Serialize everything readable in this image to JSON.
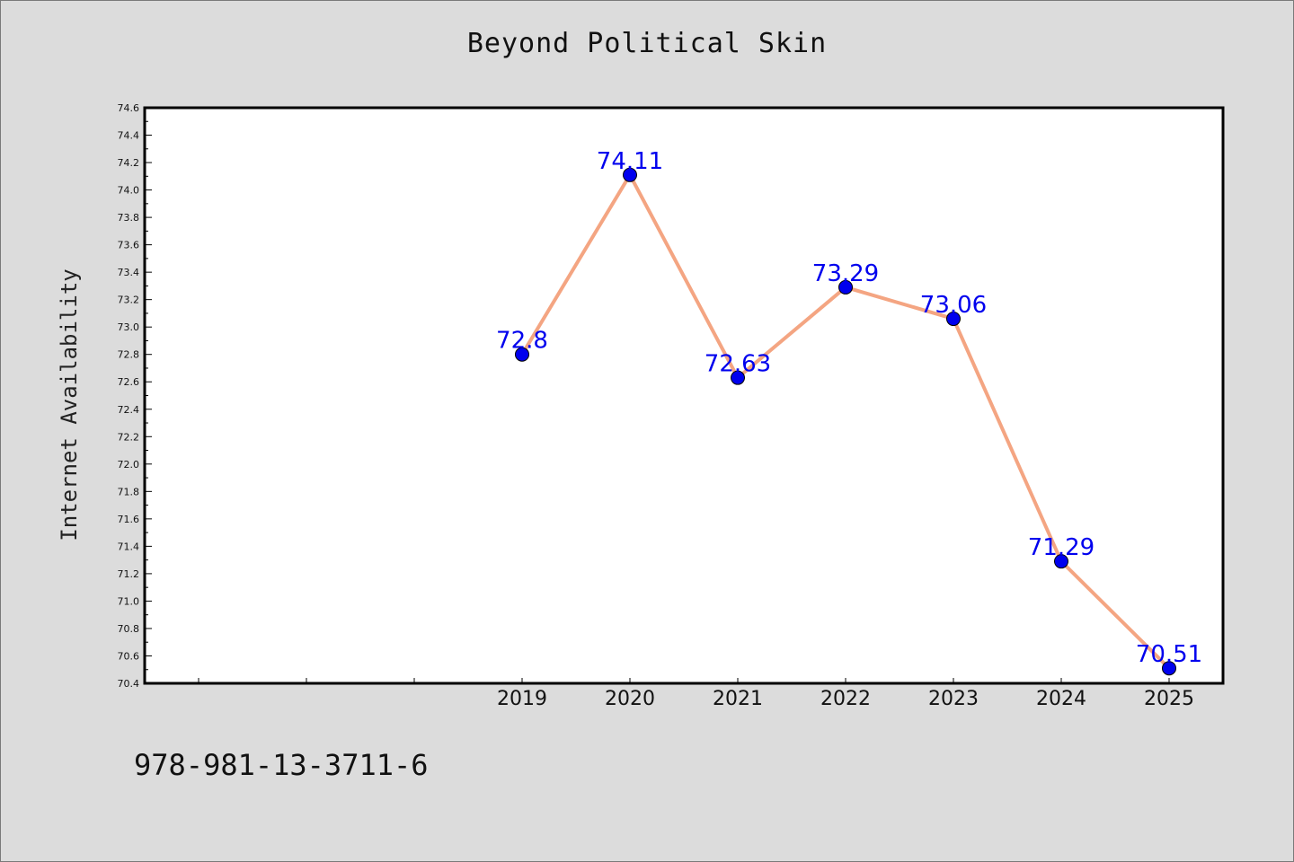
{
  "chart_data": {
    "type": "line",
    "title": "Beyond Political Skin",
    "xlabel": "",
    "ylabel": "Internet Availability",
    "x_range": [
      2015.5,
      2025.5
    ],
    "ylim": [
      70.4,
      74.6
    ],
    "y_ticks": [
      "70.4",
      "70.6",
      "70.8",
      "71.0",
      "71.2",
      "71.4",
      "71.6",
      "71.8",
      "72.0",
      "72.2",
      "72.4",
      "72.6",
      "72.8",
      "73.0",
      "73.2",
      "73.4",
      "73.6",
      "73.8",
      "74.0",
      "74.2",
      "74.4",
      "74.6"
    ],
    "x_ticks": [
      2016,
      2017,
      2018,
      2019,
      2020,
      2021,
      2022,
      2023,
      2024,
      2025
    ],
    "x_tick_labels": [
      "",
      "",
      "",
      "2019",
      "2020",
      "2021",
      "2022",
      "2023",
      "2024",
      "2025"
    ],
    "grid": false,
    "line_color": "#f4a582",
    "marker_color": "#0000ee",
    "label_color": "#0000ee",
    "series": [
      {
        "x": [
          2019,
          2020,
          2021,
          2022,
          2023,
          2024,
          2025
        ],
        "values": [
          72.8,
          74.11,
          72.63,
          73.29,
          73.06,
          71.29,
          70.51
        ],
        "labels": [
          "72.8",
          "74.11",
          "72.63",
          "73.29",
          "73.06",
          "71.29",
          "70.51"
        ]
      }
    ]
  },
  "footer": {
    "isbn": "978-981-13-3711-6"
  }
}
